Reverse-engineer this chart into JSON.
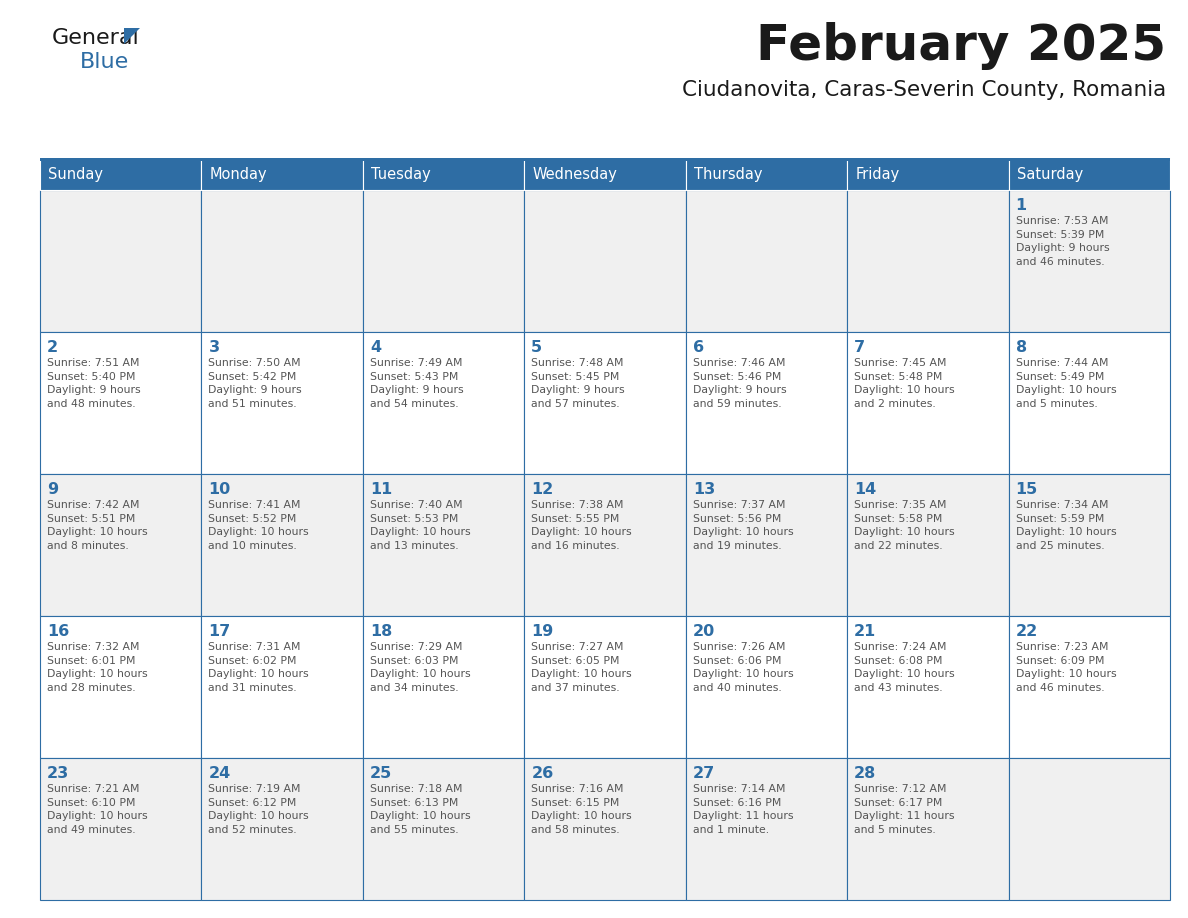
{
  "title": "February 2025",
  "subtitle": "Ciudanovita, Caras-Severin County, Romania",
  "days_of_week": [
    "Sunday",
    "Monday",
    "Tuesday",
    "Wednesday",
    "Thursday",
    "Friday",
    "Saturday"
  ],
  "header_bg": "#2E6DA4",
  "header_text": "#FFFFFF",
  "cell_bg_even": "#F0F0F0",
  "cell_bg_odd": "#FFFFFF",
  "border_color": "#2E6DA4",
  "day_num_color": "#2E6DA4",
  "text_color": "#555555",
  "title_color": "#1a1a1a",
  "subtitle_color": "#1a1a1a",
  "logo_general_color": "#1a1a1a",
  "logo_blue_color": "#2E6DA4",
  "logo_triangle_color": "#2E6DA4",
  "weeks": [
    [
      {
        "day": null,
        "info": null
      },
      {
        "day": null,
        "info": null
      },
      {
        "day": null,
        "info": null
      },
      {
        "day": null,
        "info": null
      },
      {
        "day": null,
        "info": null
      },
      {
        "day": null,
        "info": null
      },
      {
        "day": 1,
        "info": "Sunrise: 7:53 AM\nSunset: 5:39 PM\nDaylight: 9 hours\nand 46 minutes."
      }
    ],
    [
      {
        "day": 2,
        "info": "Sunrise: 7:51 AM\nSunset: 5:40 PM\nDaylight: 9 hours\nand 48 minutes."
      },
      {
        "day": 3,
        "info": "Sunrise: 7:50 AM\nSunset: 5:42 PM\nDaylight: 9 hours\nand 51 minutes."
      },
      {
        "day": 4,
        "info": "Sunrise: 7:49 AM\nSunset: 5:43 PM\nDaylight: 9 hours\nand 54 minutes."
      },
      {
        "day": 5,
        "info": "Sunrise: 7:48 AM\nSunset: 5:45 PM\nDaylight: 9 hours\nand 57 minutes."
      },
      {
        "day": 6,
        "info": "Sunrise: 7:46 AM\nSunset: 5:46 PM\nDaylight: 9 hours\nand 59 minutes."
      },
      {
        "day": 7,
        "info": "Sunrise: 7:45 AM\nSunset: 5:48 PM\nDaylight: 10 hours\nand 2 minutes."
      },
      {
        "day": 8,
        "info": "Sunrise: 7:44 AM\nSunset: 5:49 PM\nDaylight: 10 hours\nand 5 minutes."
      }
    ],
    [
      {
        "day": 9,
        "info": "Sunrise: 7:42 AM\nSunset: 5:51 PM\nDaylight: 10 hours\nand 8 minutes."
      },
      {
        "day": 10,
        "info": "Sunrise: 7:41 AM\nSunset: 5:52 PM\nDaylight: 10 hours\nand 10 minutes."
      },
      {
        "day": 11,
        "info": "Sunrise: 7:40 AM\nSunset: 5:53 PM\nDaylight: 10 hours\nand 13 minutes."
      },
      {
        "day": 12,
        "info": "Sunrise: 7:38 AM\nSunset: 5:55 PM\nDaylight: 10 hours\nand 16 minutes."
      },
      {
        "day": 13,
        "info": "Sunrise: 7:37 AM\nSunset: 5:56 PM\nDaylight: 10 hours\nand 19 minutes."
      },
      {
        "day": 14,
        "info": "Sunrise: 7:35 AM\nSunset: 5:58 PM\nDaylight: 10 hours\nand 22 minutes."
      },
      {
        "day": 15,
        "info": "Sunrise: 7:34 AM\nSunset: 5:59 PM\nDaylight: 10 hours\nand 25 minutes."
      }
    ],
    [
      {
        "day": 16,
        "info": "Sunrise: 7:32 AM\nSunset: 6:01 PM\nDaylight: 10 hours\nand 28 minutes."
      },
      {
        "day": 17,
        "info": "Sunrise: 7:31 AM\nSunset: 6:02 PM\nDaylight: 10 hours\nand 31 minutes."
      },
      {
        "day": 18,
        "info": "Sunrise: 7:29 AM\nSunset: 6:03 PM\nDaylight: 10 hours\nand 34 minutes."
      },
      {
        "day": 19,
        "info": "Sunrise: 7:27 AM\nSunset: 6:05 PM\nDaylight: 10 hours\nand 37 minutes."
      },
      {
        "day": 20,
        "info": "Sunrise: 7:26 AM\nSunset: 6:06 PM\nDaylight: 10 hours\nand 40 minutes."
      },
      {
        "day": 21,
        "info": "Sunrise: 7:24 AM\nSunset: 6:08 PM\nDaylight: 10 hours\nand 43 minutes."
      },
      {
        "day": 22,
        "info": "Sunrise: 7:23 AM\nSunset: 6:09 PM\nDaylight: 10 hours\nand 46 minutes."
      }
    ],
    [
      {
        "day": 23,
        "info": "Sunrise: 7:21 AM\nSunset: 6:10 PM\nDaylight: 10 hours\nand 49 minutes."
      },
      {
        "day": 24,
        "info": "Sunrise: 7:19 AM\nSunset: 6:12 PM\nDaylight: 10 hours\nand 52 minutes."
      },
      {
        "day": 25,
        "info": "Sunrise: 7:18 AM\nSunset: 6:13 PM\nDaylight: 10 hours\nand 55 minutes."
      },
      {
        "day": 26,
        "info": "Sunrise: 7:16 AM\nSunset: 6:15 PM\nDaylight: 10 hours\nand 58 minutes."
      },
      {
        "day": 27,
        "info": "Sunrise: 7:14 AM\nSunset: 6:16 PM\nDaylight: 11 hours\nand 1 minute."
      },
      {
        "day": 28,
        "info": "Sunrise: 7:12 AM\nSunset: 6:17 PM\nDaylight: 11 hours\nand 5 minutes."
      },
      {
        "day": null,
        "info": null
      }
    ]
  ]
}
